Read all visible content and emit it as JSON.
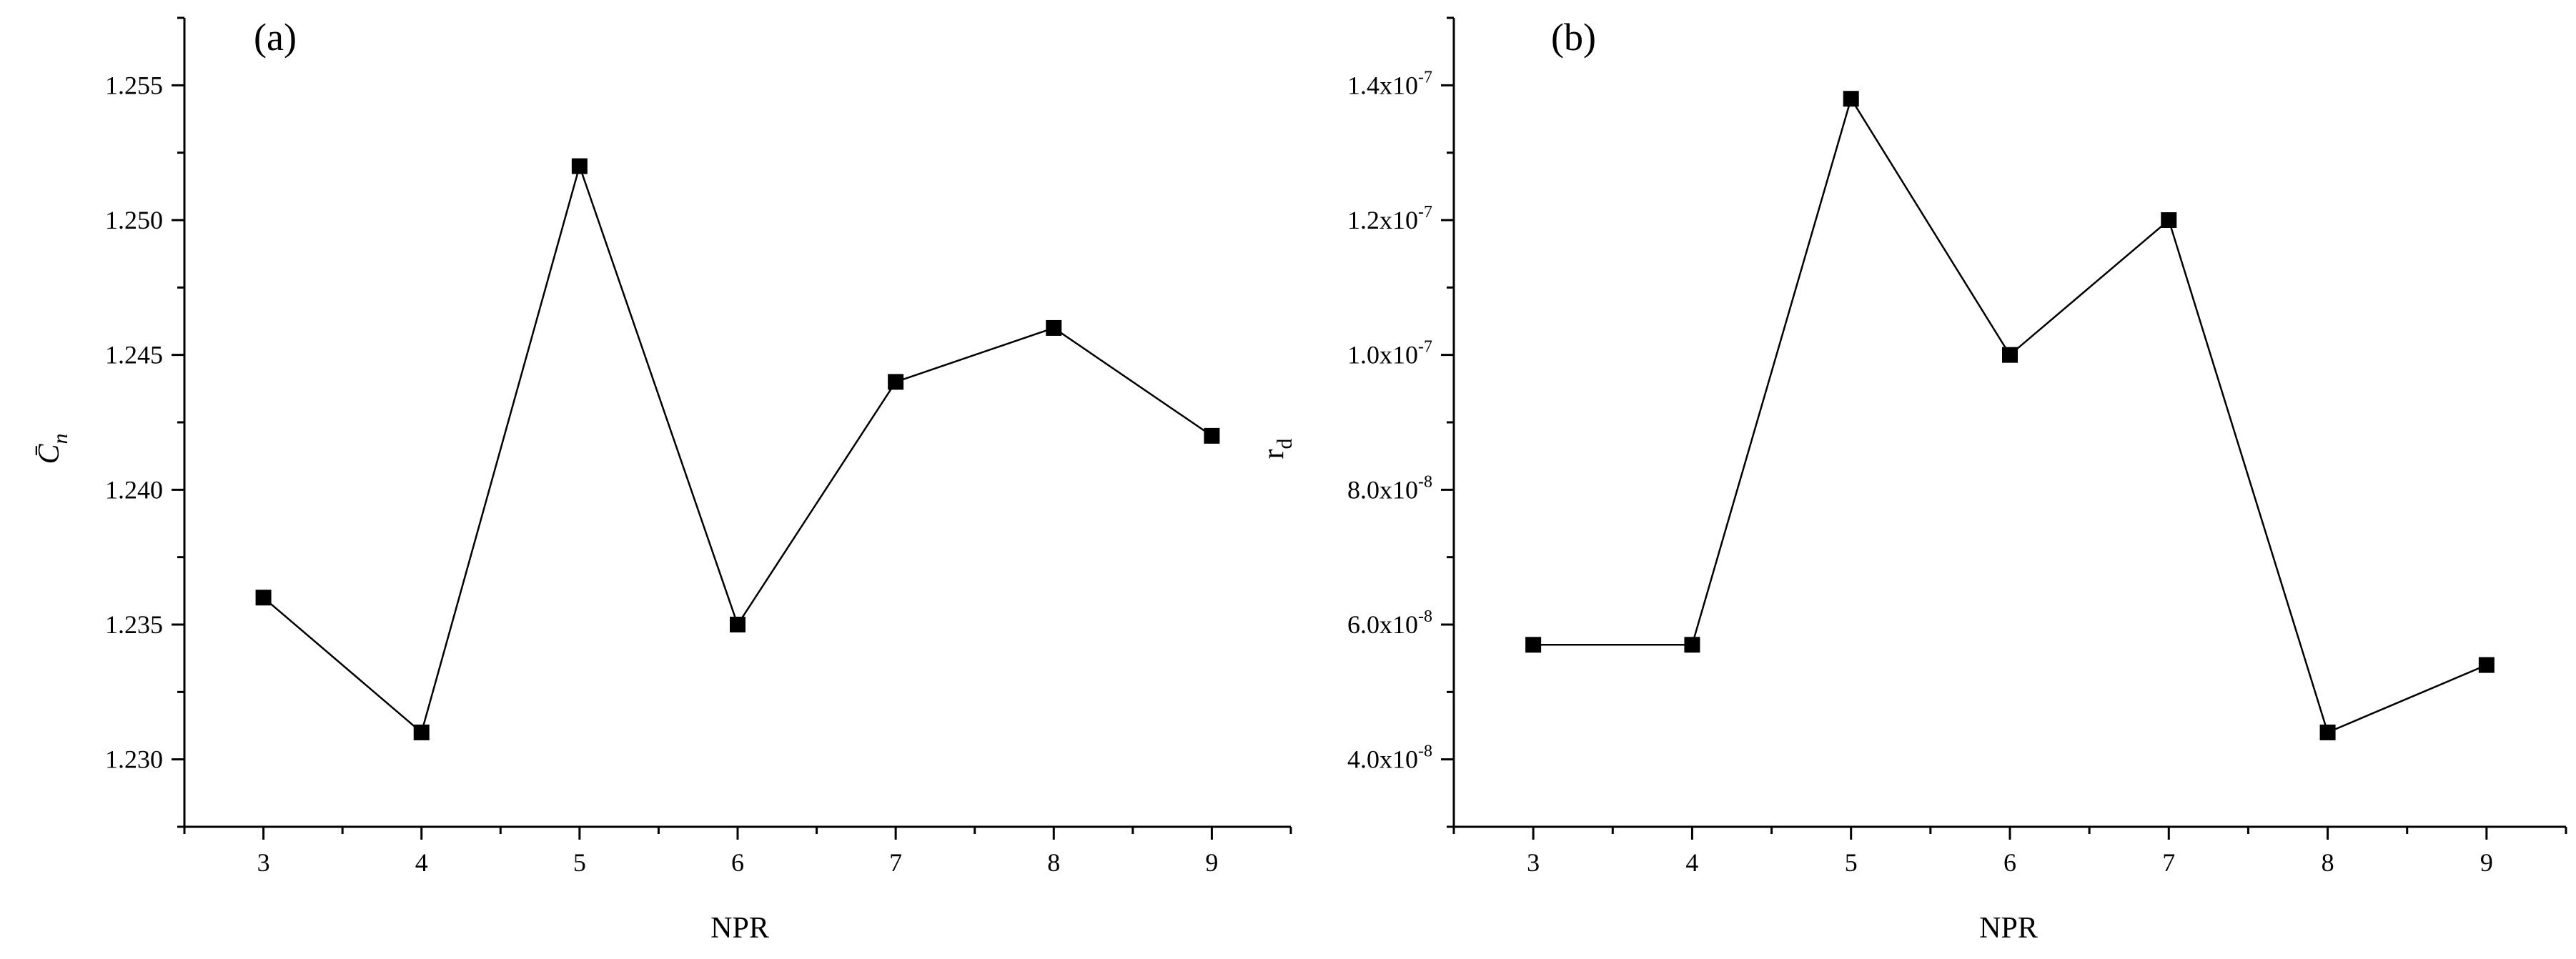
{
  "chart_data": [
    {
      "type": "line",
      "panel_label": "(a)",
      "title": "",
      "xlabel": "NPR",
      "ylabel": "C̄n",
      "x": [
        3,
        4,
        5,
        6,
        7,
        8,
        9
      ],
      "x_ticks": [
        "3",
        "4",
        "5",
        "6",
        "7",
        "8",
        "9"
      ],
      "xlim": [
        2.5,
        9.5
      ],
      "y_ticks": [
        "1.230",
        "1.235",
        "1.240",
        "1.245",
        "1.250",
        "1.255"
      ],
      "ylim": [
        1.2275,
        1.2575
      ],
      "series": [
        {
          "values": [
            1.236,
            1.231,
            1.252,
            1.235,
            1.244,
            1.246,
            1.242
          ]
        }
      ],
      "marker": "filled-square",
      "color": "#000000",
      "grid": false,
      "legend": "none"
    },
    {
      "type": "line",
      "panel_label": "(b)",
      "title": "",
      "xlabel": "NPR",
      "ylabel": "rd",
      "x": [
        3,
        4,
        5,
        6,
        7,
        8,
        9
      ],
      "x_ticks": [
        "3",
        "4",
        "5",
        "6",
        "7",
        "8",
        "9"
      ],
      "xlim": [
        2.5,
        9.5
      ],
      "y_ticks": [
        {
          "mantissa": "4.0x10",
          "exp": "-8",
          "value": 4e-08
        },
        {
          "mantissa": "6.0x10",
          "exp": "-8",
          "value": 6e-08
        },
        {
          "mantissa": "8.0x10",
          "exp": "-8",
          "value": 8e-08
        },
        {
          "mantissa": "1.0x10",
          "exp": "-7",
          "value": 1e-07
        },
        {
          "mantissa": "1.2x10",
          "exp": "-7",
          "value": 1.2e-07
        },
        {
          "mantissa": "1.4x10",
          "exp": "-7",
          "value": 1.4e-07
        }
      ],
      "ylim": [
        3e-08,
        1.5e-07
      ],
      "series": [
        {
          "values": [
            5.7e-08,
            5.7e-08,
            1.38e-07,
            1e-07,
            1.2e-07,
            4.4e-08,
            5.4e-08
          ]
        }
      ],
      "marker": "filled-square",
      "color": "#000000",
      "grid": false,
      "legend": "none"
    }
  ]
}
